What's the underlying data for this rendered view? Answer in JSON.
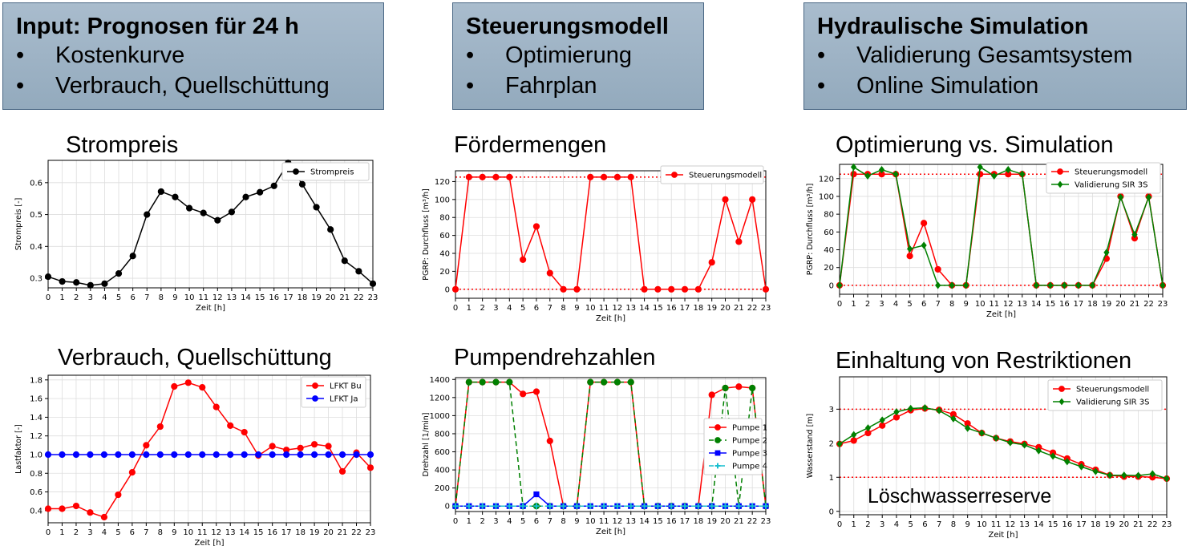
{
  "headers": [
    {
      "title": "Input: Prognosen für 24 h",
      "items": [
        "Kostenkurve",
        "Verbrauch, Quellschüttung"
      ]
    },
    {
      "title": "Steuerungsmodell",
      "items": [
        "Optimierung",
        "Fahrplan"
      ]
    },
    {
      "title": "Hydraulische Simulation",
      "items": [
        "Validierung Gesamtsystem",
        "Online Simulation"
      ]
    }
  ],
  "bullet": "•",
  "panel_titles": {
    "strompreis": "Strompreis",
    "foerdermengen": "Fördermengen",
    "opt_sim": "Optimierung vs. Simulation",
    "verbrauch": "Verbrauch, Quellschüttung",
    "pumpen": "Pumpendrehzahlen",
    "restriktionen": "Einhaltung von Restriktionen"
  },
  "annotation_loeschwasser": "Löschwasserreserve",
  "colors": {
    "header_bg": "#9fb4c7",
    "header_border": "#4a6784",
    "red": "#ff0000",
    "green": "#008000",
    "blue": "#0000ff",
    "cyan": "#17becf",
    "black": "#000000"
  },
  "chart_data": [
    {
      "id": "strompreis",
      "type": "line",
      "xlabel": "Zeit [h]",
      "ylabel": "Strompreis [-]",
      "xlim": [
        0,
        23
      ],
      "ylim": [
        0.27,
        0.67
      ],
      "yticks": [
        0.3,
        0.4,
        0.5,
        0.6
      ],
      "ytick_labels": [
        "0.3",
        "0.4",
        "0.5",
        "0.6"
      ],
      "legend_position": "top-right",
      "grid": true,
      "x": [
        0,
        1,
        2,
        3,
        4,
        5,
        6,
        7,
        8,
        9,
        10,
        11,
        12,
        13,
        14,
        15,
        16,
        17,
        18,
        19,
        20,
        21,
        22,
        23
      ],
      "series": [
        {
          "name": "Strompreis",
          "color": "#000000",
          "marker": "circle",
          "values": [
            0.305,
            0.29,
            0.287,
            0.278,
            0.283,
            0.315,
            0.37,
            0.5,
            0.572,
            0.555,
            0.52,
            0.505,
            0.482,
            0.508,
            0.555,
            0.57,
            0.59,
            0.662,
            0.595,
            0.523,
            0.453,
            0.355,
            0.322,
            0.283
          ]
        }
      ]
    },
    {
      "id": "foerdermengen",
      "type": "line",
      "xlabel": "Zeit [h]",
      "ylabel": "PGRP: Durchfluss [m³/h]",
      "xlim": [
        0,
        23
      ],
      "ylim": [
        -10,
        132
      ],
      "yticks": [
        0,
        20,
        40,
        60,
        80,
        100,
        120
      ],
      "ytick_labels": [
        "0",
        "20",
        "40",
        "60",
        "80",
        "100",
        "120"
      ],
      "ref_lines": [
        0,
        125
      ],
      "legend_position": "top-right",
      "grid": true,
      "x": [
        0,
        1,
        2,
        3,
        4,
        5,
        6,
        7,
        8,
        9,
        10,
        11,
        12,
        13,
        14,
        15,
        16,
        17,
        18,
        19,
        20,
        21,
        22,
        23
      ],
      "series": [
        {
          "name": "Steuerungsmodell",
          "color": "#ff0000",
          "marker": "circle",
          "values": [
            0,
            125,
            125,
            125,
            125,
            33,
            70,
            18,
            0,
            0,
            125,
            125,
            125,
            125,
            0,
            0,
            0,
            0,
            0,
            30,
            100,
            53,
            100,
            0
          ]
        }
      ]
    },
    {
      "id": "opt_sim",
      "type": "line",
      "xlabel": "Zeit [h]",
      "ylabel": "PGRP: Durchfluss [m³/h]",
      "xlim": [
        0,
        23
      ],
      "ylim": [
        -10,
        136
      ],
      "yticks": [
        0,
        20,
        40,
        60,
        80,
        100,
        120
      ],
      "ytick_labels": [
        "0",
        "20",
        "40",
        "60",
        "80",
        "100",
        "120"
      ],
      "ref_lines": [
        0,
        125
      ],
      "legend_position": "top-right",
      "grid": true,
      "x": [
        0,
        1,
        2,
        3,
        4,
        5,
        6,
        7,
        8,
        9,
        10,
        11,
        12,
        13,
        14,
        15,
        16,
        17,
        18,
        19,
        20,
        21,
        22,
        23
      ],
      "series": [
        {
          "name": "Steuerungsmodell",
          "color": "#ff0000",
          "marker": "circle",
          "values": [
            0,
            125,
            125,
            125,
            125,
            33,
            70,
            18,
            0,
            0,
            125,
            125,
            125,
            125,
            0,
            0,
            0,
            0,
            0,
            30,
            100,
            53,
            100,
            0
          ]
        },
        {
          "name": "Validierung SIR 3S",
          "color": "#008000",
          "marker": "diamond",
          "values": [
            0,
            133,
            123,
            130,
            125,
            41,
            45,
            0,
            0,
            0,
            133,
            123,
            130,
            125,
            0,
            0,
            0,
            0,
            0,
            37,
            99,
            57,
            99,
            0
          ]
        }
      ]
    },
    {
      "id": "verbrauch",
      "type": "line",
      "xlabel": "Zeit [h]",
      "ylabel": "Lastfaktor [-]",
      "xlim": [
        0,
        23
      ],
      "ylim": [
        0.27,
        1.85
      ],
      "yticks": [
        0.4,
        0.6,
        0.8,
        1.0,
        1.2,
        1.4,
        1.6,
        1.8
      ],
      "ytick_labels": [
        "0.4",
        "0.6",
        "0.8",
        "1.0",
        "1.2",
        "1.4",
        "1.6",
        "1.8"
      ],
      "legend_position": "top-right",
      "grid": true,
      "x": [
        0,
        1,
        2,
        3,
        4,
        5,
        6,
        7,
        8,
        9,
        10,
        11,
        12,
        13,
        14,
        15,
        16,
        17,
        18,
        19,
        20,
        21,
        22,
        23
      ],
      "series": [
        {
          "name": "LFKT Bu",
          "color": "#ff0000",
          "marker": "circle",
          "values": [
            0.42,
            0.42,
            0.45,
            0.38,
            0.33,
            0.57,
            0.81,
            1.1,
            1.3,
            1.73,
            1.77,
            1.72,
            1.51,
            1.31,
            1.24,
            0.99,
            1.09,
            1.05,
            1.07,
            1.11,
            1.09,
            0.82,
            1.02,
            0.86
          ]
        },
        {
          "name": "LFKT Ja",
          "color": "#0000ff",
          "marker": "circle",
          "values": [
            1,
            1,
            1,
            1,
            1,
            1,
            1,
            1,
            1,
            1,
            1,
            1,
            1,
            1,
            1,
            1,
            1,
            1,
            1,
            1,
            1,
            1,
            1,
            1
          ]
        }
      ]
    },
    {
      "id": "pumpen",
      "type": "line",
      "xlabel": "Zeit [h]",
      "ylabel": "Drehzahl [1/min]",
      "xlim": [
        0,
        23
      ],
      "ylim": [
        -60,
        1420
      ],
      "yticks": [
        0,
        200,
        400,
        600,
        800,
        1000,
        1200,
        1400
      ],
      "ytick_labels": [
        "0",
        "200",
        "400",
        "600",
        "800",
        "1000",
        "1200",
        "1400"
      ],
      "legend_position": "center-right",
      "grid": true,
      "x": [
        0,
        1,
        2,
        3,
        4,
        5,
        6,
        7,
        8,
        9,
        10,
        11,
        12,
        13,
        14,
        15,
        16,
        17,
        18,
        19,
        20,
        21,
        22,
        23
      ],
      "series": [
        {
          "name": "Pumpe 1",
          "color": "#ff0000",
          "marker": "circle",
          "dash": "",
          "values": [
            0,
            1370,
            1370,
            1370,
            1370,
            1240,
            1265,
            720,
            0,
            0,
            1370,
            1370,
            1370,
            1370,
            0,
            0,
            0,
            0,
            0,
            1230,
            1305,
            1320,
            1305,
            0
          ]
        },
        {
          "name": "Pumpe 2",
          "color": "#008000",
          "marker": "circle",
          "dash": "6,4",
          "values": [
            0,
            1370,
            1370,
            1370,
            1370,
            0,
            0,
            0,
            0,
            0,
            1370,
            1370,
            1370,
            1370,
            0,
            0,
            0,
            0,
            0,
            0,
            1305,
            0,
            1305,
            0
          ]
        },
        {
          "name": "Pumpe 3",
          "color": "#0000ff",
          "marker": "square",
          "dash": "",
          "values": [
            0,
            0,
            0,
            0,
            0,
            0,
            130,
            0,
            0,
            0,
            0,
            0,
            0,
            0,
            0,
            0,
            0,
            0,
            0,
            0,
            0,
            0,
            0,
            0
          ]
        },
        {
          "name": "Pumpe 4",
          "color": "#17becf",
          "marker": "plus",
          "dash": "6,3,2,3",
          "values": [
            0,
            0,
            0,
            0,
            0,
            0,
            0,
            0,
            0,
            0,
            0,
            0,
            0,
            0,
            0,
            0,
            0,
            0,
            0,
            0,
            0,
            0,
            0,
            0
          ]
        }
      ]
    },
    {
      "id": "restriktionen",
      "type": "line",
      "xlabel": "Zeit [h]",
      "ylabel": "Wasserstand [m]",
      "xlim": [
        0,
        23
      ],
      "ylim": [
        -0.1,
        3.95
      ],
      "yticks": [
        0,
        1,
        2,
        3
      ],
      "ytick_labels": [
        "0",
        "1",
        "2",
        "3"
      ],
      "ref_lines": [
        1,
        3
      ],
      "legend_position": "top-right",
      "grid": true,
      "x": [
        0,
        1,
        2,
        3,
        4,
        5,
        6,
        7,
        8,
        9,
        10,
        11,
        12,
        13,
        14,
        15,
        16,
        17,
        18,
        19,
        20,
        21,
        22,
        23
      ],
      "series": [
        {
          "name": "Steuerungsmodell",
          "color": "#ff0000",
          "marker": "circle",
          "values": [
            1.98,
            2.08,
            2.3,
            2.52,
            2.76,
            2.97,
            3.02,
            2.98,
            2.85,
            2.58,
            2.3,
            2.15,
            2.05,
            1.98,
            1.88,
            1.72,
            1.55,
            1.38,
            1.22,
            1.06,
            1.02,
            1.02,
            1.0,
            0.96
          ]
        },
        {
          "name": "Validierung SIR 3S",
          "color": "#008000",
          "marker": "diamond",
          "values": [
            1.98,
            2.25,
            2.45,
            2.68,
            2.92,
            3.02,
            3.04,
            2.96,
            2.72,
            2.44,
            2.3,
            2.15,
            2.02,
            1.95,
            1.78,
            1.62,
            1.46,
            1.31,
            1.17,
            1.06,
            1.06,
            1.05,
            1.1,
            0.96
          ]
        }
      ]
    }
  ]
}
